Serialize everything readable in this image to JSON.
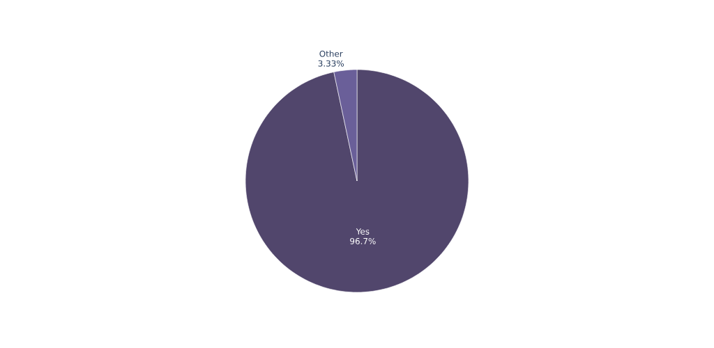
{
  "chart_data": {
    "type": "pie",
    "categories": [
      "Yes",
      "Other"
    ],
    "values": [
      96.7,
      3.33
    ],
    "value_labels": [
      "96.7%",
      "3.33%"
    ],
    "colors": [
      "#51466c",
      "#6a5f99"
    ]
  }
}
